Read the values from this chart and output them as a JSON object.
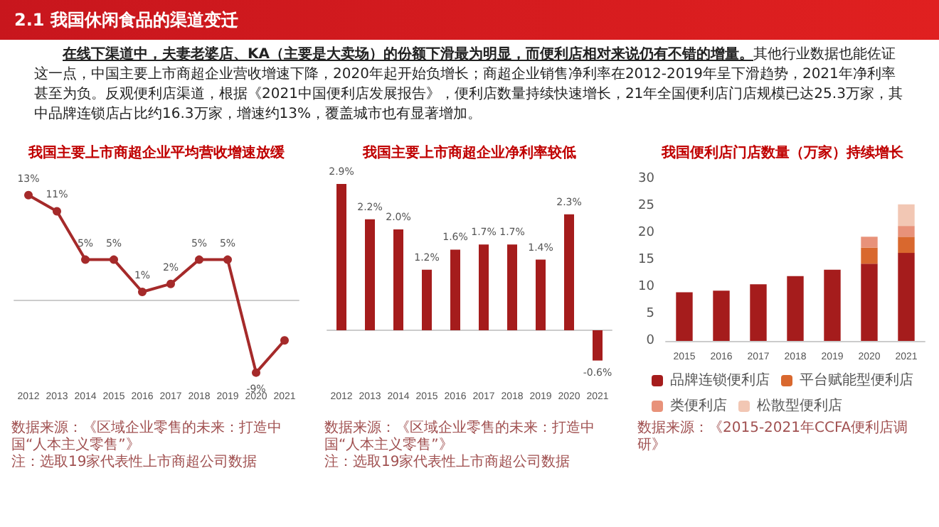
{
  "chart_data": [
    {
      "type": "line",
      "title": "我国主要上市商超企业平均营收增速放缓",
      "color": "#a52a2a",
      "marker": "circle",
      "categories": [
        "2012",
        "2013",
        "2014",
        "2015",
        "2016",
        "2017",
        "2018",
        "2019",
        "2020",
        "2021"
      ],
      "values": [
        13,
        11,
        5,
        5,
        1,
        2,
        5,
        5,
        -9,
        -5
      ],
      "value_labels": [
        "13%",
        "11%",
        "5%",
        "5%",
        "1%",
        "2%",
        "5%",
        "5%",
        "-9%",
        null
      ],
      "annotations": [
        "2.1 我国休闲食品的渠道变迁",
        "在线下渠道中，夫妻老婆店、KA（主要是大卖场）的份额下滑最为明显，而便利店相对来说仍有不错的增量。",
        "其他行业数据也能佐证这一点，中国主要上市商超企业营收增速下降，2020年起开始负增长；商超企业销售净利率在2012-2019年呈下滑趋势，2021年净利率甚至为负。反观便利店渠道，根据《2021中国便利店发展报告》，便利店数量持续快速增长，21年全国便利店门店规模已达25.3万家，其中品牌连锁店占比约16.3万家，增速约13%，覆盖城市也有显著增加。",
        "数据来源：《区域企业零售的未来：打造中国“人本主义零售”》",
        "注：选取19家代表性上市商超公司数据"
      ]
    },
    {
      "type": "bar",
      "title": "我国主要上市商超企业净利率较低",
      "color": "#a51c1c",
      "categories": [
        "2012",
        "2013",
        "2014",
        "2015",
        "2016",
        "2017",
        "2018",
        "2019",
        "2020",
        "2021"
      ],
      "values": [
        2.9,
        2.2,
        2.0,
        1.2,
        1.6,
        1.7,
        1.7,
        1.4,
        2.3,
        -0.6
      ],
      "value_labels": [
        "2.9%",
        "2.2%",
        "2.0%",
        "1.2%",
        "1.6%",
        "1.7%",
        "1.7%",
        "1.4%",
        "2.3%",
        "-0.6%"
      ],
      "annotations": [
        "数据来源：《区域企业零售的未来：打造中国“人本主义零售”》",
        "注：选取19家代表性上市商超公司数据"
      ]
    },
    {
      "type": "bar",
      "stacked": true,
      "title": "我国便利店门店数量（万家）持续增长",
      "categories": [
        "2015",
        "2016",
        "2017",
        "2018",
        "2019",
        "2020",
        "2021"
      ],
      "ylim": [
        0,
        30
      ],
      "yticks": [
        0,
        5,
        10,
        15,
        20,
        25,
        30
      ],
      "legend": "bottom",
      "grid": false,
      "series": [
        {
          "name": "品牌连锁便利店",
          "color": "#a51c1c",
          "values": [
            9,
            9.3,
            10.5,
            12,
            13.2,
            14.3,
            16.3
          ]
        },
        {
          "name": "平台赋能型便利店",
          "color": "#d9682e",
          "values": [
            null,
            null,
            null,
            null,
            null,
            3,
            3
          ]
        },
        {
          "name": "类便利店",
          "color": "#e8927a",
          "values": [
            null,
            null,
            null,
            null,
            null,
            2,
            2
          ]
        },
        {
          "name": "松散型便利店",
          "color": "#f2c7b4",
          "values": [
            null,
            null,
            null,
            null,
            null,
            null,
            4
          ]
        }
      ],
      "annotations": [
        "数据来源：《2015-2021年CCFA便利店调研》"
      ]
    }
  ]
}
